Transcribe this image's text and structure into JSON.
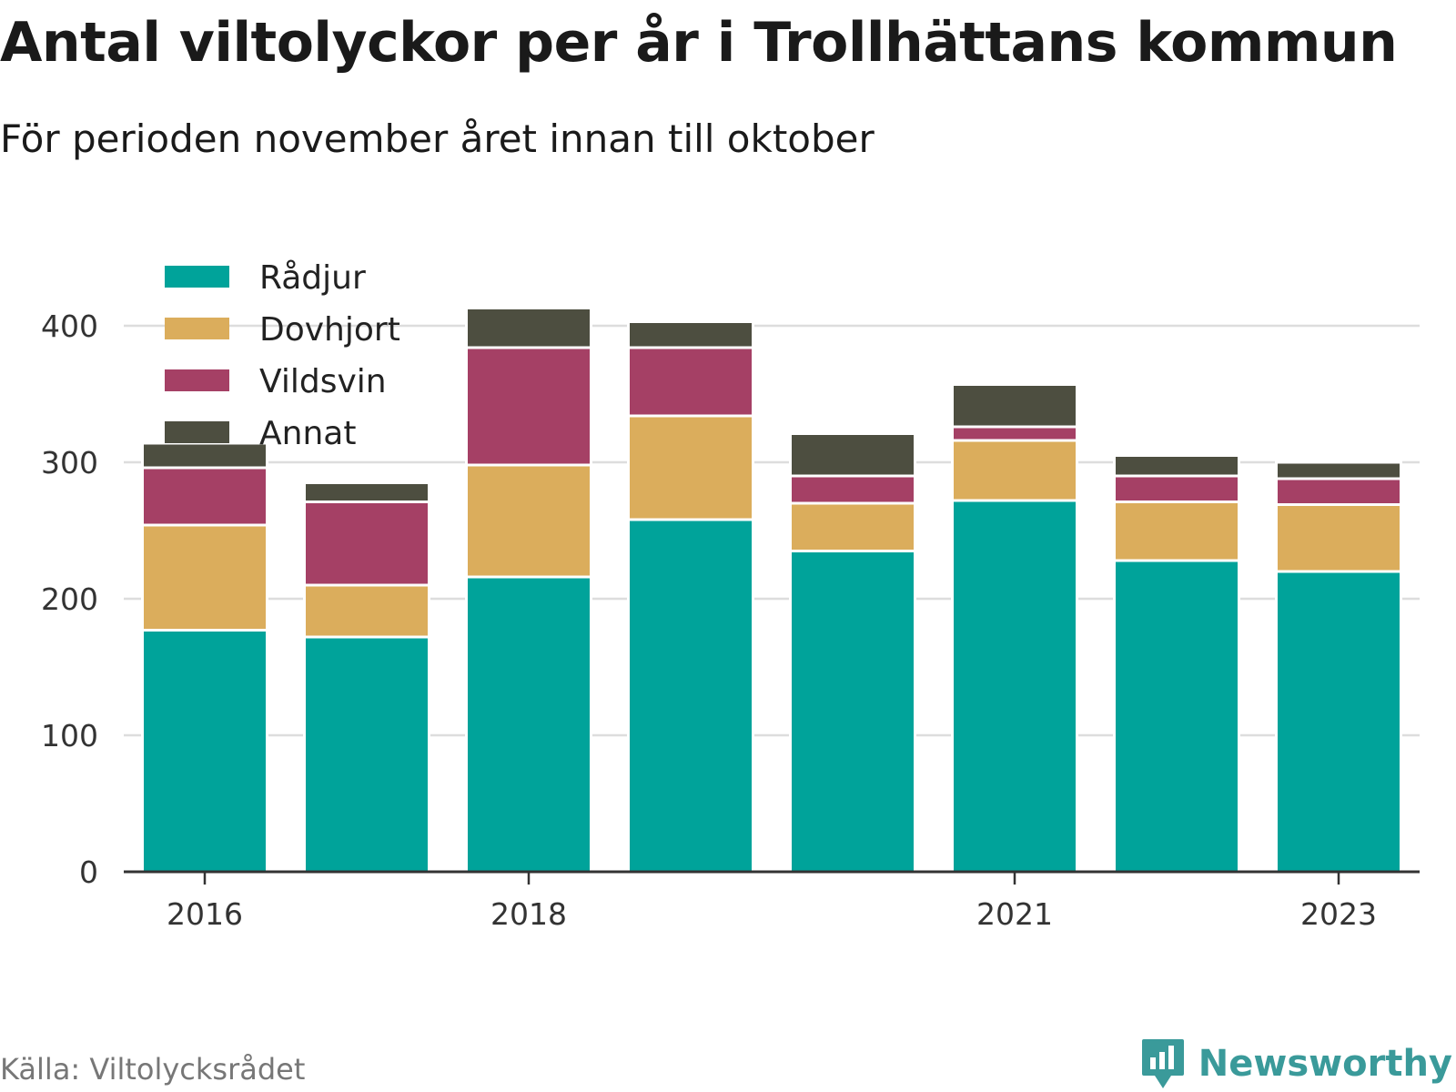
{
  "title": "Antal viltolyckor per år i Trollhättans kommun",
  "subtitle": "För perioden november året innan till oktober",
  "source": "Källa: Viltolycksrådet",
  "brand": {
    "name": "Newsworthy",
    "icon": "newsworthy-logo-icon",
    "color": "#3a9a9a"
  },
  "chart_data": {
    "type": "bar",
    "stacked": true,
    "categories": [
      "2016",
      "2017",
      "2018",
      "2019",
      "2020",
      "2021",
      "2022",
      "2023"
    ],
    "x_tick_labels": [
      "2016",
      "2018",
      "2021",
      "2023"
    ],
    "series": [
      {
        "name": "Rådjur",
        "color": "#00a39a",
        "values": [
          177,
          172,
          216,
          258,
          235,
          272,
          228,
          220
        ]
      },
      {
        "name": "Dovhjort",
        "color": "#dbad5c",
        "values": [
          77,
          38,
          82,
          76,
          35,
          44,
          43,
          49
        ]
      },
      {
        "name": "Vildsvin",
        "color": "#a54065",
        "values": [
          42,
          61,
          86,
          50,
          20,
          10,
          19,
          19
        ]
      },
      {
        "name": "Annat",
        "color": "#4d4e40",
        "values": [
          18,
          14,
          29,
          19,
          31,
          31,
          15,
          12
        ]
      }
    ],
    "ylim": [
      0,
      420
    ],
    "y_ticks": [
      0,
      100,
      200,
      300,
      400
    ],
    "grid": true,
    "legend": "top-left"
  }
}
